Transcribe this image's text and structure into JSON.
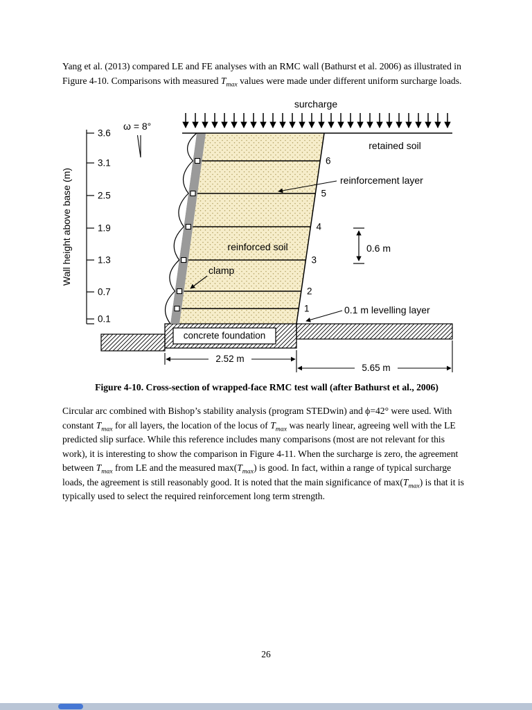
{
  "document": {
    "page_number": "26"
  },
  "paragraphs": {
    "p1": [
      {
        "text": "Yang et al. (2013) compared LE and FE analyses with an RMC wall (Bathurst et al. 2006) as illustrated in Figure 4-10. Comparisons with measured "
      },
      {
        "text": "T",
        "i": true
      },
      {
        "text": "max",
        "i": true,
        "sub": true
      },
      {
        "text": " values were made under different uniform surcharge loads."
      }
    ],
    "p2": [
      {
        "text": "Circular arc combined with Bishop’s stability analysis (program STEDwin) and ϕ=42° were used. With constant "
      },
      {
        "text": "T",
        "i": true
      },
      {
        "text": "max",
        "i": true,
        "sub": true
      },
      {
        "text": " for all layers, the location of the locus of "
      },
      {
        "text": "T",
        "i": true
      },
      {
        "text": "max",
        "i": true,
        "sub": true
      },
      {
        "text": " was nearly linear, agreeing well with the LE predicted slip surface. While this reference includes many comparisons (most are not relevant for this work), it is interesting to show the comparison in Figure 4-11. When the surcharge is zero, the agreement between "
      },
      {
        "text": "T",
        "i": true
      },
      {
        "text": "max",
        "i": true,
        "sub": true
      },
      {
        "text": " from LE and the measured max("
      },
      {
        "text": "T",
        "i": true
      },
      {
        "text": "max",
        "i": true,
        "sub": true
      },
      {
        "text": ") is good. In fact, within a range of typical surcharge loads, the agreement is still reasonably good.  It is noted that the main significance of max("
      },
      {
        "text": "T",
        "i": true
      },
      {
        "text": "max",
        "i": true,
        "sub": true
      },
      {
        "text": ") is that it is typically used to select the required reinforcement long term strength."
      }
    ]
  },
  "figure": {
    "caption": "Figure 4-10. Cross-section of wrapped-face RMC test wall (after Bathurst et al., 2006)",
    "labels": {
      "surcharge": "surcharge",
      "retained_soil": "retained soil",
      "reinforcement_layer": "reinforcement layer",
      "reinforced_soil": "reinforced soil",
      "clamp": "clamp",
      "spacing_dim": "0.6 m",
      "levelling_layer": "0.1 m levelling layer",
      "concrete_foundation": "concrete foundation",
      "foundation_width_dim": "2.52 m",
      "total_width_dim": "5.65 m",
      "batter_angle": "ω = 8°",
      "axis_title": "Wall height above base (m)"
    },
    "axis_ticks": [
      "3.6",
      "3.1",
      "2.5",
      "1.9",
      "1.3",
      "0.7",
      "0.1"
    ],
    "layer_numbers": [
      "6",
      "5",
      "4",
      "3",
      "2",
      "1"
    ],
    "colors": {
      "soil_fill": "#f6edca",
      "facing_gray": "#9a9a9a"
    }
  },
  "viewer": {
    "scrollbar_track_color": "#b9c5d6",
    "scrollbar_thumb_color": "#4577d4"
  }
}
